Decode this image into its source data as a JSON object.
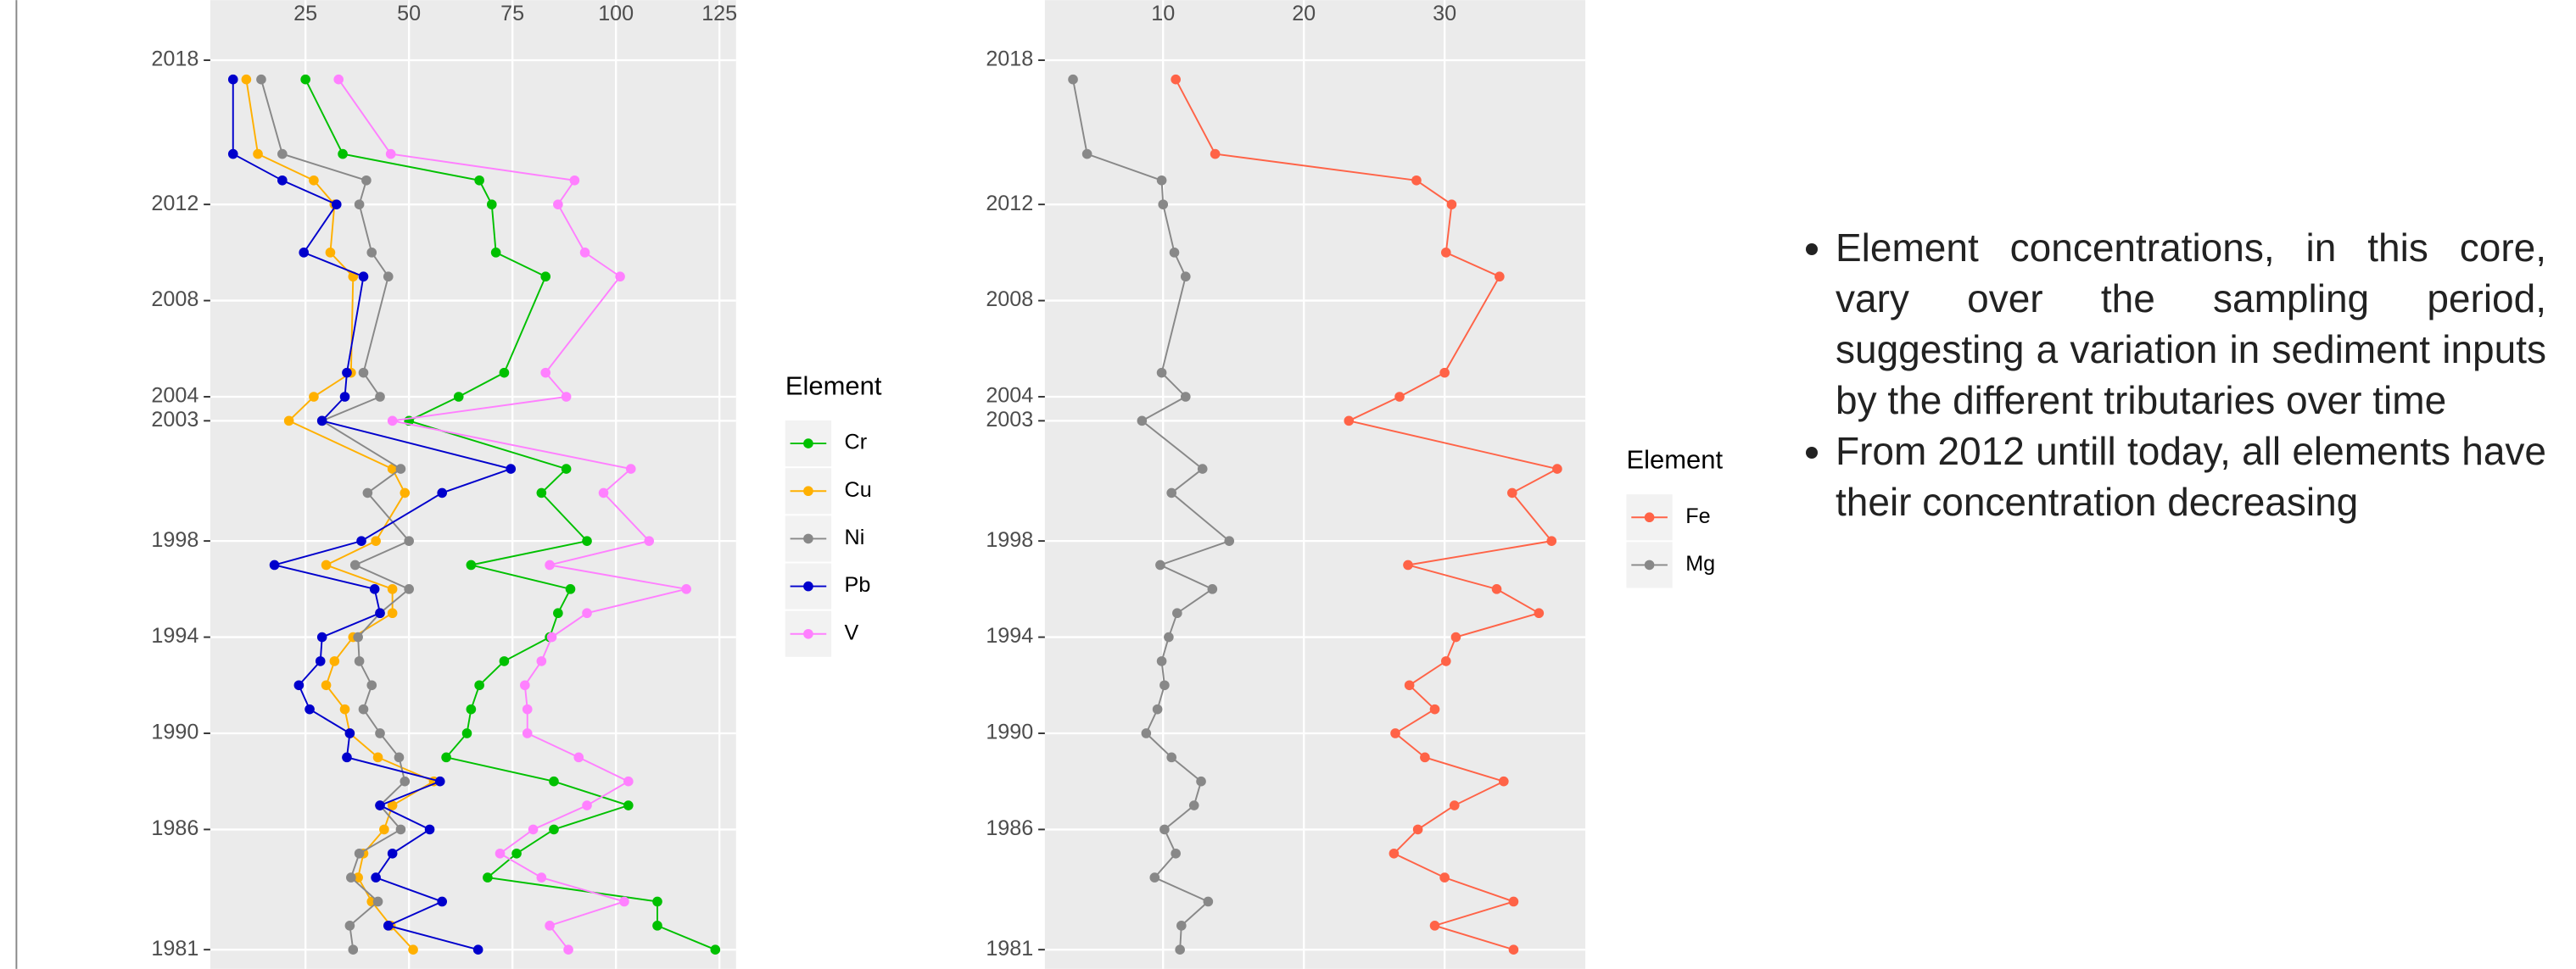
{
  "chart_data": [
    {
      "type": "line",
      "legend_title": "Element",
      "legend": "right",
      "grid": true,
      "xlim": [
        2,
        129
      ],
      "xticks": [
        25,
        50,
        75,
        100,
        125
      ],
      "ylim": [
        1980.2,
        2020.5
      ],
      "yticks": [
        2018,
        2012,
        2008,
        2004,
        2003,
        1998,
        1994,
        1990,
        1986,
        1981
      ],
      "y": [
        2017.2,
        2014.1,
        2013,
        2012,
        2010,
        2009,
        2005,
        2004,
        2003,
        2001,
        2000,
        1998,
        1997,
        1996,
        1995,
        1994,
        1993,
        1992,
        1991,
        1990,
        1989,
        1988,
        1987,
        1986,
        1985,
        1984,
        1983,
        1982,
        1981
      ],
      "series": [
        {
          "name": "Cr",
          "color": "#00c000",
          "values": [
            25,
            34,
            67,
            70,
            71,
            83,
            73,
            62,
            50,
            88,
            82,
            93,
            65,
            89,
            86,
            84,
            73,
            67,
            65,
            64,
            59,
            85,
            103,
            85,
            76,
            69,
            110,
            110,
            124
          ]
        },
        {
          "name": "Cu",
          "color": "#ffb000",
          "values": [
            10.7,
            13.5,
            27,
            32,
            31,
            36.5,
            36,
            27,
            21,
            46,
            49,
            42,
            30,
            46,
            46,
            36.5,
            32,
            30,
            34.5,
            35.7,
            42.5,
            56,
            46,
            44,
            39,
            37.7,
            41,
            45.6,
            51
          ]
        },
        {
          "name": "Ni",
          "color": "#888888",
          "values": [
            14.3,
            19.4,
            39.7,
            38,
            41,
            45,
            39,
            43,
            29,
            48,
            40,
            50,
            37,
            50,
            43,
            37.7,
            38,
            41,
            39,
            43,
            47.6,
            49,
            43,
            48,
            38,
            36,
            42.5,
            35.7,
            36.5
          ]
        },
        {
          "name": "Pb",
          "color": "#0000cc",
          "values": [
            7.5,
            7.5,
            19.4,
            32.5,
            24.6,
            39,
            35,
            34.5,
            29,
            74.6,
            58,
            38.5,
            17.5,
            41.7,
            43,
            29,
            28.6,
            23.4,
            26,
            35.7,
            35,
            57.5,
            43,
            55,
            46,
            42,
            58,
            45,
            66.7
          ]
        },
        {
          "name": "V",
          "color": "#ff80ff",
          "values": [
            33,
            45.6,
            90,
            86,
            92.5,
            101,
            83,
            88,
            46,
            103.6,
            97,
            108,
            84,
            117,
            93,
            84.5,
            82,
            78,
            78.6,
            78.6,
            91,
            103,
            93,
            80,
            72,
            82,
            102,
            84,
            88.5
          ]
        }
      ]
    },
    {
      "type": "line",
      "legend_title": "Element",
      "legend": "right",
      "grid": true,
      "xlim": [
        1.6,
        40
      ],
      "xticks": [
        10,
        20,
        30
      ],
      "ylim": [
        1980.2,
        2020.5
      ],
      "yticks": [
        2018,
        2012,
        2008,
        2004,
        2003,
        1998,
        1994,
        1990,
        1986,
        1981
      ],
      "y": [
        2017.2,
        2014.1,
        2013,
        2012,
        2010,
        2009,
        2005,
        2004,
        2003,
        2001,
        2000,
        1998,
        1997,
        1996,
        1995,
        1994,
        1993,
        1992,
        1991,
        1990,
        1989,
        1988,
        1987,
        1986,
        1985,
        1984,
        1983,
        1982,
        1981
      ],
      "series": [
        {
          "name": "Fe",
          "color": "#ff6347",
          "values": [
            10.9,
            13.7,
            28,
            30.5,
            30.1,
            33.9,
            30,
            26.8,
            23.2,
            38,
            34.8,
            37.6,
            27.4,
            33.7,
            36.7,
            30.8,
            30.1,
            27.5,
            29.3,
            26.5,
            28.6,
            34.2,
            30.7,
            28.1,
            26.4,
            30,
            34.9,
            29.3,
            34.9
          ]
        },
        {
          "name": "Mg",
          "color": "#888888",
          "values": [
            3.6,
            4.6,
            9.9,
            10,
            10.8,
            11.6,
            9.9,
            11.6,
            8.5,
            12.8,
            10.6,
            14.7,
            9.8,
            13.5,
            11,
            10.4,
            9.9,
            10.1,
            9.6,
            8.8,
            10.6,
            12.7,
            12.2,
            10.1,
            10.9,
            9.4,
            13.2,
            11.3,
            11.2
          ]
        }
      ]
    }
  ],
  "bullets": [
    "Element concentrations, in this core, vary over the sampling period, suggesting a variation in sediment inputs by the different tributaries over time",
    "From 2012 untill today, all elements have their concentration decreasing"
  ]
}
